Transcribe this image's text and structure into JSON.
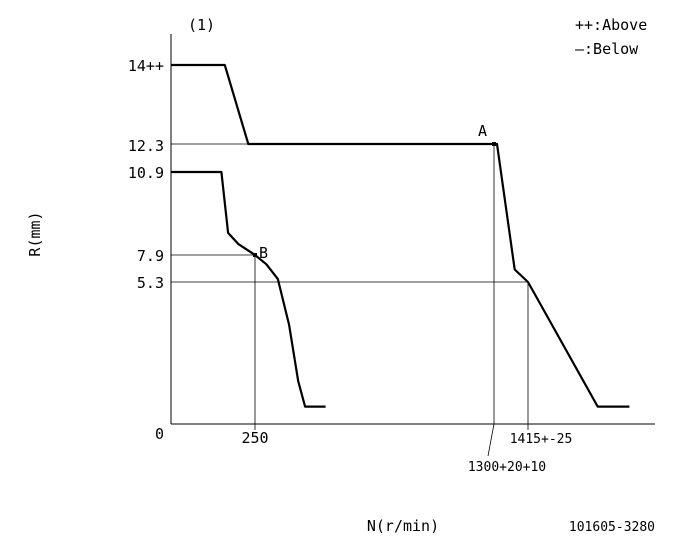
{
  "chart_data": {
    "type": "line",
    "figure_label": "(1)",
    "legend": [
      "++:Above",
      "—:Below"
    ],
    "xlabel": "N(r/min)",
    "ylabel": "R(mm)",
    "code": "101605-3280",
    "y_ticks": [
      "14++",
      "12.3",
      "10.9",
      "7.9",
      "5.3",
      "0"
    ],
    "x_ticks": [
      "250",
      "1300+20+10",
      "1415+-25"
    ],
    "points": [
      {
        "name": "A",
        "x": 1300,
        "y": 12.3
      },
      {
        "name": "B",
        "x": 250,
        "y": 7.9
      }
    ],
    "series": [
      {
        "points": [
          [
            0,
            14
          ],
          [
            160,
            14
          ],
          [
            230,
            12.3
          ],
          [
            1300,
            12.3
          ],
          [
            1310,
            12.3
          ],
          [
            1370,
            6.5
          ],
          [
            1415,
            5.3
          ],
          [
            1635,
            0.65
          ],
          [
            1735,
            0.65
          ]
        ]
      },
      {
        "points": [
          [
            0,
            10.9
          ],
          [
            150,
            10.9
          ],
          [
            170,
            8.7
          ],
          [
            200,
            8.3
          ],
          [
            250,
            7.9
          ],
          [
            300,
            7.0
          ],
          [
            350,
            5.6
          ],
          [
            400,
            3.7
          ],
          [
            440,
            1.6
          ],
          [
            470,
            0.65
          ],
          [
            560,
            0.65
          ]
        ]
      }
    ]
  }
}
